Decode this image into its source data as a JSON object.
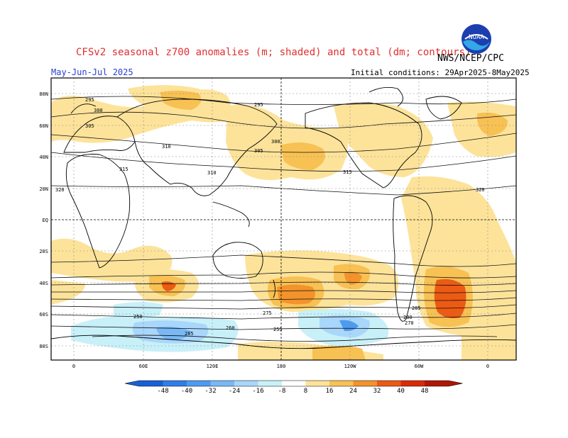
{
  "header": {
    "title": "CFSv2 seasonal z700 anomalies (m; shaded) and total (dm; contours)",
    "agency": "NWS/NCEP/CPC",
    "season": "May-Jun-Jul 2025",
    "init": "Initial conditions: 29Apr2025-8May2025",
    "logo_text": "NOAA"
  },
  "map": {
    "lat_labels": [
      "80N",
      "60N",
      "40N",
      "20N",
      "EQ",
      "20S",
      "40S",
      "60S",
      "80S"
    ],
    "lon_labels": [
      "0",
      "60E",
      "120E",
      "180",
      "120W",
      "60W",
      "0"
    ],
    "contour_labels": [
      "295",
      "300",
      "305",
      "310",
      "315",
      "320",
      "295",
      "300",
      "305",
      "310",
      "315",
      "320",
      "285",
      "280",
      "275",
      "270",
      "265",
      "260",
      "255",
      "250"
    ]
  },
  "colorbar": {
    "labels": [
      "-48",
      "-40",
      "-32",
      "-24",
      "-16",
      "-8",
      "8",
      "16",
      "24",
      "32",
      "40",
      "48"
    ],
    "colors": [
      "#1a5fd6",
      "#2e7ee8",
      "#4d9bf0",
      "#79b8f5",
      "#a9d6fb",
      "#c8f0f8",
      "#ffffff",
      "#fde39a",
      "#f8c153",
      "#f2932b",
      "#ec5a14",
      "#d92a07",
      "#b01604"
    ]
  }
}
